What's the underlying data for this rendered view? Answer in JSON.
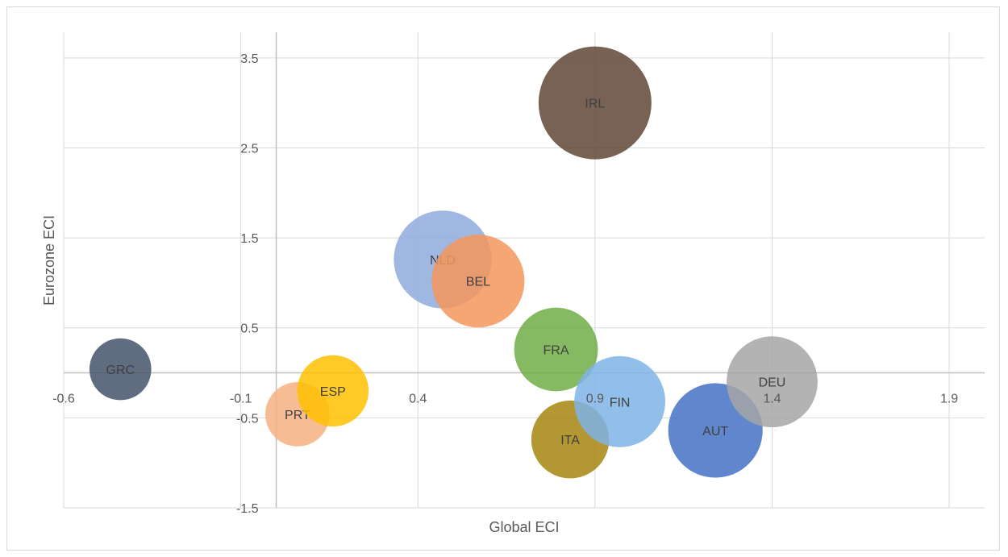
{
  "chart_data": {
    "type": "bubble",
    "title": "",
    "xlabel": "Global ECI",
    "ylabel": "Eurozone ECI",
    "xlim": [
      -0.6,
      2.0
    ],
    "ylim": [
      -1.5,
      4.0
    ],
    "x_ticks": [
      -0.6,
      -0.1,
      0.4,
      0.9,
      1.4,
      1.9
    ],
    "y_ticks": [
      -1.5,
      -0.5,
      0.5,
      1.5,
      2.5,
      3.5
    ],
    "grid": true,
    "points": [
      {
        "label": "GRC",
        "x": -0.44,
        "y": 0.04,
        "size": 0.6,
        "color": "#44546a"
      },
      {
        "label": "PRT",
        "x": 0.06,
        "y": -0.46,
        "size": 0.65,
        "color": "#f4b183"
      },
      {
        "label": "ESP",
        "x": 0.16,
        "y": -0.2,
        "size": 0.8,
        "color": "#ffc000"
      },
      {
        "label": "NLD",
        "x": 0.47,
        "y": 1.26,
        "size": 1.5,
        "color": "#8faadc"
      },
      {
        "label": "BEL",
        "x": 0.57,
        "y": 1.02,
        "size": 1.35,
        "color": "#f4975a"
      },
      {
        "label": "FRA",
        "x": 0.79,
        "y": 0.26,
        "size": 1.1,
        "color": "#70ad47"
      },
      {
        "label": "ITA",
        "x": 0.83,
        "y": -0.74,
        "size": 0.95,
        "color": "#a5850f"
      },
      {
        "label": "FIN",
        "x": 0.97,
        "y": -0.32,
        "size": 1.3,
        "color": "#7fb3e6"
      },
      {
        "label": "AUT",
        "x": 1.24,
        "y": -0.64,
        "size": 1.4,
        "color": "#4472c4"
      },
      {
        "label": "IRL",
        "x": 0.9,
        "y": 3.0,
        "size": 2.0,
        "color": "#5f4636"
      },
      {
        "label": "DEU",
        "x": 1.4,
        "y": -0.1,
        "size": 1.3,
        "color": "#a6a6a6"
      }
    ]
  }
}
